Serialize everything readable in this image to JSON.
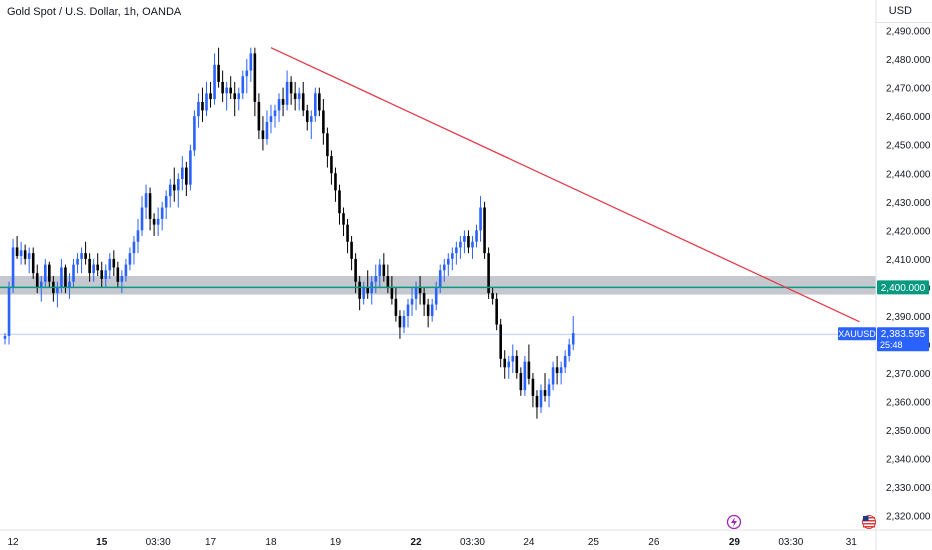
{
  "header": {
    "title": "Gold Spot / U.S. Dollar, 1h, OANDA",
    "currency": "USD"
  },
  "colors": {
    "up": "#2962ff",
    "down": "#000000",
    "trendline": "#e53a48",
    "support_line": "#089981",
    "zone_fill": "#b2b5be",
    "price_tag": "#2962ff",
    "level_tag": "#089981"
  },
  "icons": {
    "lightning": "lightning-icon",
    "flag": "us-flag-icon"
  },
  "chart_data": {
    "type": "candlestick",
    "symbol": "XAUUSD",
    "ylim": [
      2315,
      2493
    ],
    "y_ticks": [
      2320,
      2330,
      2340,
      2350,
      2360,
      2370,
      2380,
      2390,
      2400,
      2410,
      2420,
      2430,
      2440,
      2450,
      2460,
      2470,
      2480,
      2490
    ],
    "y_tick_labels": [
      "2,320.000",
      "2,330.000",
      "2,340.000",
      "2,350.000",
      "2,360.000",
      "2,370.000",
      "2,380.000",
      "2,390.000",
      "2,400.000",
      "2,410.000",
      "2,420.000",
      "2,430.000",
      "2,440.000",
      "2,450.000",
      "2,460.000",
      "2,470.000",
      "2,480.000",
      "2,490.000"
    ],
    "x_ticks": [
      {
        "label": "12",
        "bar": 2,
        "bold": false
      },
      {
        "label": "15",
        "bar": 24,
        "bold": true
      },
      {
        "label": "03:30",
        "bar": 38,
        "bold": false
      },
      {
        "label": "17",
        "bar": 51,
        "bold": false
      },
      {
        "label": "18",
        "bar": 66,
        "bold": false
      },
      {
        "label": "19",
        "bar": 82,
        "bold": false
      },
      {
        "label": "22",
        "bar": 102,
        "bold": true
      },
      {
        "label": "03:30",
        "bar": 116,
        "bold": false
      },
      {
        "label": "24",
        "bar": 130,
        "bold": false
      },
      {
        "label": "25",
        "bar": 146,
        "bold": false
      },
      {
        "label": "26",
        "bar": 161,
        "bold": false
      },
      {
        "label": "29",
        "bar": 181,
        "bold": true
      },
      {
        "label": "03:30",
        "bar": 195,
        "bold": false
      },
      {
        "label": "31",
        "bar": 210,
        "bold": false
      }
    ],
    "candles": [
      [
        2382,
        2384,
        2380,
        2383
      ],
      [
        2383,
        2402,
        2380,
        2400
      ],
      [
        2400,
        2417,
        2398,
        2414
      ],
      [
        2414,
        2418,
        2410,
        2411
      ],
      [
        2411,
        2416,
        2408,
        2413
      ],
      [
        2413,
        2415,
        2408,
        2410
      ],
      [
        2410,
        2414,
        2405,
        2412
      ],
      [
        2412,
        2414,
        2403,
        2405
      ],
      [
        2405,
        2408,
        2398,
        2400
      ],
      [
        2400,
        2404,
        2395,
        2402
      ],
      [
        2402,
        2410,
        2400,
        2408
      ],
      [
        2408,
        2409,
        2400,
        2402
      ],
      [
        2402,
        2404,
        2395,
        2398
      ],
      [
        2398,
        2402,
        2393,
        2400
      ],
      [
        2400,
        2410,
        2398,
        2407
      ],
      [
        2407,
        2408,
        2398,
        2400
      ],
      [
        2400,
        2405,
        2396,
        2402
      ],
      [
        2402,
        2410,
        2400,
        2408
      ],
      [
        2408,
        2412,
        2405,
        2410
      ],
      [
        2410,
        2414,
        2405,
        2412
      ],
      [
        2412,
        2416,
        2408,
        2410
      ],
      [
        2410,
        2412,
        2402,
        2405
      ],
      [
        2405,
        2410,
        2402,
        2408
      ],
      [
        2408,
        2412,
        2404,
        2406
      ],
      [
        2406,
        2409,
        2400,
        2403
      ],
      [
        2403,
        2408,
        2400,
        2406
      ],
      [
        2406,
        2412,
        2403,
        2410
      ],
      [
        2410,
        2413,
        2404,
        2407
      ],
      [
        2407,
        2409,
        2400,
        2402
      ],
      [
        2402,
        2406,
        2398,
        2404
      ],
      [
        2404,
        2410,
        2402,
        2408
      ],
      [
        2408,
        2414,
        2406,
        2412
      ],
      [
        2412,
        2418,
        2408,
        2416
      ],
      [
        2416,
        2424,
        2412,
        2420
      ],
      [
        2420,
        2432,
        2418,
        2428
      ],
      [
        2428,
        2436,
        2424,
        2433
      ],
      [
        2433,
        2435,
        2420,
        2424
      ],
      [
        2424,
        2426,
        2418,
        2422
      ],
      [
        2422,
        2428,
        2418,
        2424
      ],
      [
        2424,
        2430,
        2420,
        2428
      ],
      [
        2428,
        2434,
        2424,
        2432
      ],
      [
        2432,
        2438,
        2428,
        2436
      ],
      [
        2436,
        2442,
        2430,
        2434
      ],
      [
        2434,
        2440,
        2428,
        2438
      ],
      [
        2438,
        2446,
        2434,
        2442
      ],
      [
        2442,
        2444,
        2432,
        2436
      ],
      [
        2436,
        2450,
        2434,
        2448
      ],
      [
        2448,
        2462,
        2446,
        2460
      ],
      [
        2460,
        2468,
        2456,
        2465
      ],
      [
        2465,
        2470,
        2458,
        2462
      ],
      [
        2462,
        2472,
        2460,
        2468
      ],
      [
        2468,
        2472,
        2463,
        2466
      ],
      [
        2466,
        2482,
        2464,
        2478
      ],
      [
        2478,
        2484,
        2470,
        2472
      ],
      [
        2472,
        2476,
        2465,
        2468
      ],
      [
        2468,
        2472,
        2462,
        2470
      ],
      [
        2470,
        2474,
        2466,
        2468
      ],
      [
        2468,
        2472,
        2460,
        2466
      ],
      [
        2466,
        2470,
        2462,
        2468
      ],
      [
        2468,
        2476,
        2466,
        2474
      ],
      [
        2474,
        2480,
        2468,
        2476
      ],
      [
        2476,
        2484,
        2472,
        2482
      ],
      [
        2482,
        2484,
        2460,
        2465
      ],
      [
        2465,
        2468,
        2452,
        2455
      ],
      [
        2455,
        2460,
        2448,
        2452
      ],
      [
        2452,
        2462,
        2450,
        2458
      ],
      [
        2458,
        2464,
        2454,
        2460
      ],
      [
        2460,
        2464,
        2456,
        2462
      ],
      [
        2462,
        2468,
        2458,
        2466
      ],
      [
        2466,
        2470,
        2460,
        2464
      ],
      [
        2464,
        2476,
        2462,
        2472
      ],
      [
        2472,
        2474,
        2464,
        2468
      ],
      [
        2468,
        2472,
        2462,
        2466
      ],
      [
        2466,
        2470,
        2462,
        2468
      ],
      [
        2468,
        2472,
        2460,
        2462
      ],
      [
        2462,
        2464,
        2455,
        2458
      ],
      [
        2458,
        2462,
        2452,
        2460
      ],
      [
        2460,
        2470,
        2458,
        2468
      ],
      [
        2468,
        2470,
        2460,
        2462
      ],
      [
        2462,
        2466,
        2450,
        2454
      ],
      [
        2454,
        2456,
        2442,
        2446
      ],
      [
        2446,
        2448,
        2436,
        2440
      ],
      [
        2440,
        2442,
        2430,
        2434
      ],
      [
        2434,
        2436,
        2422,
        2426
      ],
      [
        2426,
        2428,
        2418,
        2422
      ],
      [
        2422,
        2424,
        2412,
        2416
      ],
      [
        2416,
        2418,
        2406,
        2410
      ],
      [
        2410,
        2412,
        2398,
        2402
      ],
      [
        2402,
        2404,
        2392,
        2396
      ],
      [
        2396,
        2402,
        2394,
        2400
      ],
      [
        2400,
        2406,
        2396,
        2398
      ],
      [
        2398,
        2404,
        2394,
        2402
      ],
      [
        2402,
        2408,
        2398,
        2404
      ],
      [
        2404,
        2410,
        2400,
        2408
      ],
      [
        2408,
        2412,
        2402,
        2404
      ],
      [
        2404,
        2408,
        2398,
        2400
      ],
      [
        2400,
        2404,
        2394,
        2396
      ],
      [
        2396,
        2400,
        2388,
        2390
      ],
      [
        2390,
        2392,
        2382,
        2386
      ],
      [
        2386,
        2392,
        2384,
        2390
      ],
      [
        2390,
        2396,
        2386,
        2394
      ],
      [
        2394,
        2400,
        2390,
        2396
      ],
      [
        2396,
        2402,
        2392,
        2400
      ],
      [
        2400,
        2404,
        2394,
        2398
      ],
      [
        2398,
        2400,
        2390,
        2394
      ],
      [
        2394,
        2396,
        2386,
        2390
      ],
      [
        2390,
        2396,
        2388,
        2394
      ],
      [
        2394,
        2402,
        2392,
        2400
      ],
      [
        2400,
        2408,
        2398,
        2406
      ],
      [
        2406,
        2410,
        2402,
        2408
      ],
      [
        2408,
        2412,
        2404,
        2410
      ],
      [
        2410,
        2414,
        2406,
        2412
      ],
      [
        2412,
        2416,
        2408,
        2414
      ],
      [
        2414,
        2418,
        2410,
        2416
      ],
      [
        2416,
        2420,
        2412,
        2418
      ],
      [
        2418,
        2420,
        2412,
        2414
      ],
      [
        2414,
        2418,
        2410,
        2416
      ],
      [
        2416,
        2422,
        2414,
        2420
      ],
      [
        2420,
        2432,
        2416,
        2428
      ],
      [
        2428,
        2430,
        2410,
        2412
      ],
      [
        2412,
        2414,
        2396,
        2398
      ],
      [
        2398,
        2400,
        2394,
        2396
      ],
      [
        2396,
        2398,
        2385,
        2387
      ],
      [
        2387,
        2389,
        2372,
        2375
      ],
      [
        2375,
        2378,
        2368,
        2372
      ],
      [
        2372,
        2376,
        2368,
        2374
      ],
      [
        2374,
        2380,
        2370,
        2376
      ],
      [
        2376,
        2378,
        2368,
        2370
      ],
      [
        2370,
        2372,
        2362,
        2364
      ],
      [
        2364,
        2376,
        2362,
        2374
      ],
      [
        2374,
        2380,
        2366,
        2368
      ],
      [
        2368,
        2370,
        2358,
        2362
      ],
      [
        2362,
        2364,
        2354,
        2358
      ],
      [
        2358,
        2366,
        2356,
        2364
      ],
      [
        2364,
        2370,
        2360,
        2362
      ],
      [
        2362,
        2368,
        2358,
        2366
      ],
      [
        2366,
        2374,
        2364,
        2372
      ],
      [
        2372,
        2376,
        2366,
        2370
      ],
      [
        2370,
        2374,
        2366,
        2372
      ],
      [
        2372,
        2378,
        2370,
        2376
      ],
      [
        2376,
        2382,
        2374,
        2380
      ],
      [
        2380,
        2390,
        2378,
        2384
      ]
    ],
    "horizontal_levels": [
      {
        "label": "2,400.000",
        "value": 2400
      }
    ],
    "support_zone": [
      2397.5,
      2404
    ],
    "trendline": [
      {
        "bar": 66,
        "value": 2484
      },
      {
        "bar": 212,
        "value": 2388
      }
    ],
    "last_price": {
      "symbol": "XAUUSD",
      "value": "2,383.595",
      "countdown": "25:48",
      "level": 2383.6
    }
  }
}
